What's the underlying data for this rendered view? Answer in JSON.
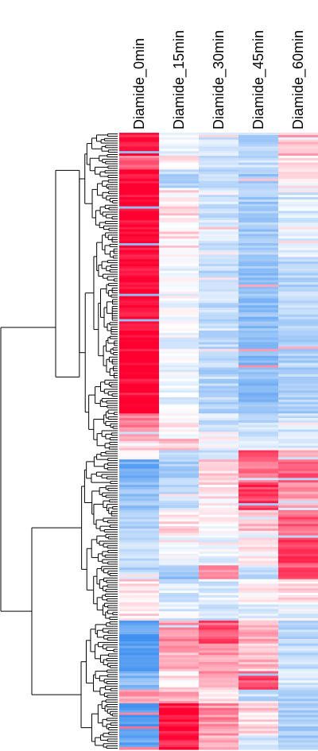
{
  "chart_data": {
    "type": "heatmap",
    "title": "",
    "columns": [
      "Diamide_0min",
      "Diamide_15min",
      "Diamide_30min",
      "Diamide_45min",
      "Diamide_60min"
    ],
    "color_scale": {
      "low": "#3d8ff0",
      "mid": "#ffffff",
      "high": "#ff0030",
      "range": [
        -1,
        1
      ]
    },
    "row_dendrogram": true,
    "row_blocks": [
      {
        "rows": 10,
        "values": [
          0.9,
          -0.15,
          -0.25,
          -0.35,
          0.3
        ]
      },
      {
        "rows": 6,
        "values": [
          0.55,
          0.1,
          -0.2,
          -0.3,
          0.1
        ]
      },
      {
        "rows": 8,
        "values": [
          1.0,
          -0.35,
          -0.3,
          -0.45,
          0.05
        ]
      },
      {
        "rows": 32,
        "values": [
          1.0,
          0.1,
          -0.25,
          -0.45,
          -0.2
        ]
      },
      {
        "rows": 30,
        "values": [
          1.0,
          -0.05,
          -0.3,
          -0.55,
          -0.35
        ]
      },
      {
        "rows": 36,
        "values": [
          1.0,
          -0.1,
          -0.35,
          -0.6,
          -0.4
        ]
      },
      {
        "rows": 10,
        "values": [
          0.45,
          0.05,
          -0.25,
          -0.3,
          -0.2
        ]
      },
      {
        "rows": 6,
        "values": [
          0.2,
          0.25,
          -0.05,
          -0.25,
          -0.15
        ]
      },
      {
        "rows": 4,
        "values": [
          0.05,
          -0.3,
          -0.2,
          0.7,
          0.45
        ]
      },
      {
        "rows": 10,
        "values": [
          -0.75,
          -0.4,
          0.15,
          0.55,
          0.6
        ]
      },
      {
        "rows": 12,
        "values": [
          -0.55,
          -0.3,
          0.1,
          0.75,
          0.4
        ]
      },
      {
        "rows": 12,
        "values": [
          -0.45,
          0.1,
          0.0,
          0.25,
          0.6
        ]
      },
      {
        "rows": 12,
        "values": [
          -0.3,
          -0.15,
          -0.1,
          0.05,
          0.75
        ]
      },
      {
        "rows": 6,
        "values": [
          -0.35,
          -0.5,
          0.4,
          -0.3,
          0.7
        ]
      },
      {
        "rows": 10,
        "values": [
          0.15,
          -0.2,
          -0.2,
          0.05,
          0.15
        ]
      },
      {
        "rows": 8,
        "values": [
          0.1,
          -0.15,
          -0.25,
          -0.2,
          -0.1
        ]
      },
      {
        "rows": 10,
        "values": [
          -0.85,
          0.4,
          0.65,
          0.3,
          -0.35
        ]
      },
      {
        "rows": 12,
        "values": [
          -0.8,
          0.35,
          0.4,
          0.25,
          -0.3
        ]
      },
      {
        "rows": 8,
        "values": [
          -0.6,
          0.1,
          0.35,
          0.7,
          -0.2
        ]
      },
      {
        "rows": 6,
        "values": [
          0.4,
          0.3,
          0.1,
          -0.3,
          -0.45
        ]
      },
      {
        "rows": 14,
        "values": [
          -0.9,
          0.95,
          0.45,
          0.15,
          -0.4
        ]
      },
      {
        "rows": 6,
        "values": [
          -0.8,
          0.85,
          0.35,
          -0.2,
          -0.5
        ]
      }
    ]
  }
}
